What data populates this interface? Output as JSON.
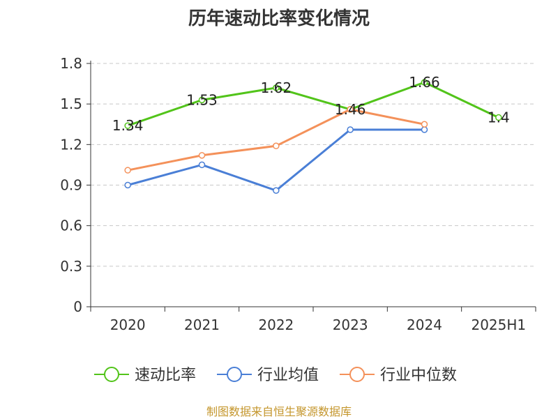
{
  "title": "历年速动比率变化情况",
  "footer": "制图数据来自恒生聚源数据库",
  "chart_data": {
    "type": "line",
    "title": "历年速动比率变化情况",
    "categories": [
      "2020",
      "2021",
      "2022",
      "2023",
      "2024",
      "2025H1"
    ],
    "ylim": [
      0,
      1.8
    ],
    "yticks": [
      "0",
      "0.3",
      "0.6",
      "0.9",
      "1.2",
      "1.5",
      "1.8"
    ],
    "grid": true,
    "legend_position": "bottom",
    "series": [
      {
        "name": "速动比率",
        "color": "#52c41a",
        "values": [
          1.34,
          1.53,
          1.62,
          1.46,
          1.66,
          1.4
        ],
        "labels": [
          "1.34",
          "1.53",
          "1.62",
          "1.46",
          "1.66",
          "1.4"
        ]
      },
      {
        "name": "行业均值",
        "color": "#4a7fd6",
        "values": [
          0.9,
          1.05,
          0.86,
          1.31,
          1.31,
          null
        ]
      },
      {
        "name": "行业中位数",
        "color": "#f4915a",
        "values": [
          1.01,
          1.12,
          1.19,
          1.46,
          1.35,
          null
        ]
      }
    ]
  }
}
